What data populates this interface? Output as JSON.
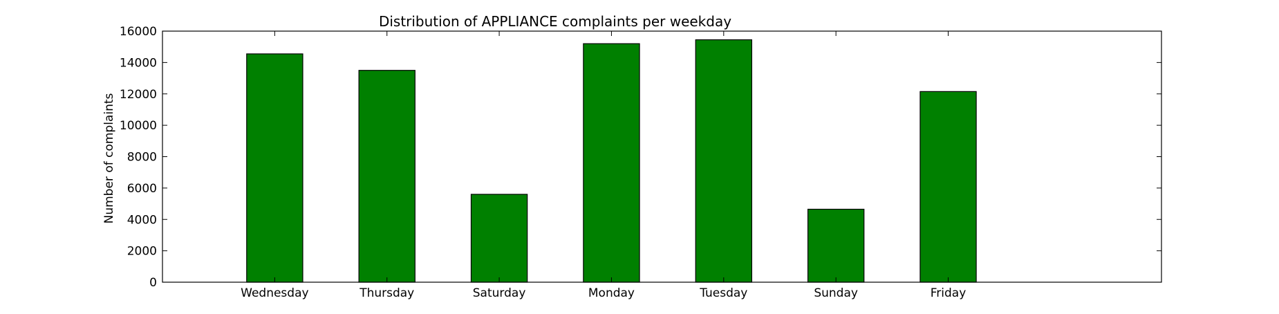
{
  "chart_data": {
    "type": "bar",
    "title": "Distribution of  APPLIANCE complaints per weekday",
    "xlabel": "",
    "ylabel": "Number of complaints",
    "categories": [
      "Wednesday",
      "Thursday",
      "Saturday",
      "Monday",
      "Tuesday",
      "Sunday",
      "Friday"
    ],
    "values": [
      14550,
      13500,
      5600,
      15200,
      15450,
      4650,
      12150
    ],
    "ylim": [
      0,
      16000
    ],
    "yticks": [
      0,
      2000,
      4000,
      6000,
      8000,
      10000,
      12000,
      14000,
      16000
    ],
    "bar_color": "#008000",
    "bar_edge_color": "#000000",
    "grid": false,
    "legend": "none"
  }
}
